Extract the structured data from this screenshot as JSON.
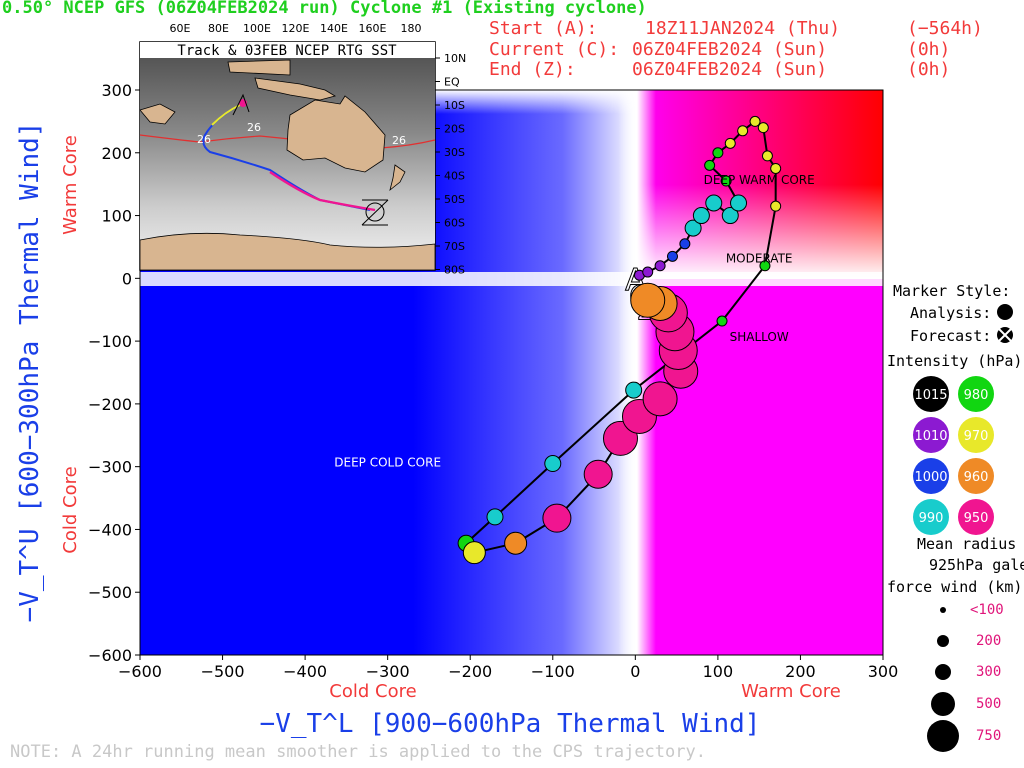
{
  "header": {
    "title": "0.50° NCEP GFS (06Z04FEB2024 run) Cyclone #1 (Existing cyclone)",
    "start_label": "Start (A):",
    "start_value": "18Z11JAN2024 (Thu)",
    "start_offset": "(−564h)",
    "current_label": "Current (C):",
    "current_value": "06Z04FEB2024 (Sun)",
    "current_offset": "(0h)",
    "end_label": "End (Z):",
    "end_value": "06Z04FEB2024 (Sun)",
    "end_offset": "(0h)"
  },
  "note": "NOTE: A 24hr running mean smoother is applied to the CPS trajectory.",
  "legend": {
    "marker_style": "Marker Style:",
    "analysis": "Analysis:",
    "forecast": "Forecast:",
    "intensity": "Intensity (hPa):",
    "intensities": [
      {
        "value": "1015",
        "color": "#000000"
      },
      {
        "value": "980",
        "color": "#11d611"
      },
      {
        "value": "1010",
        "color": "#8c1ad1"
      },
      {
        "value": "970",
        "color": "#e8e82a"
      },
      {
        "value": "1000",
        "color": "#1a3fe8"
      },
      {
        "value": "960",
        "color": "#ef8a26"
      },
      {
        "value": "990",
        "color": "#18cccc"
      },
      {
        "value": "950",
        "color": "#f01590"
      }
    ],
    "radius_title_1": "Mean radius of",
    "radius_title_2": "925hPa gale",
    "radius_title_3": "force wind (km):",
    "radii": [
      "<100",
      "200",
      "300",
      "500",
      "750"
    ]
  },
  "inset": {
    "title": "Track & 03FEB NCEP RTG SST",
    "lon_labels": [
      "60E",
      "80E",
      "100E",
      "120E",
      "140E",
      "160E",
      "180"
    ],
    "lat_labels": [
      "10N",
      "EQ",
      "10S",
      "20S",
      "30S",
      "40S",
      "50S",
      "60S",
      "70S",
      "80S"
    ],
    "sst_labels": [
      "26",
      "26",
      "26"
    ]
  },
  "chart_data": {
    "type": "scatter",
    "xlabel": "−V_T^L [900−600hPa Thermal Wind]",
    "ylabel": "−V_T^U [600−300hPa Thermal Wind]",
    "x_side_labels": {
      "left": "Cold Core",
      "right": "Warm Core"
    },
    "y_side_labels": {
      "bottom": "Cold Core",
      "top": "Warm Core"
    },
    "xlim": [
      -600,
      300
    ],
    "ylim": [
      -600,
      300
    ],
    "xticks": [
      -600,
      -500,
      -400,
      -300,
      -200,
      -100,
      0,
      100,
      200,
      300
    ],
    "yticks": [
      -600,
      -500,
      -400,
      -300,
      -200,
      -100,
      0,
      100,
      200,
      300
    ],
    "xtick_labels": [
      "−600",
      "−500",
      "−400",
      "−300",
      "−200",
      "−100",
      "0",
      "100",
      "200",
      "300"
    ],
    "ytick_labels": [
      "−600",
      "−500",
      "−400",
      "−300",
      "−200",
      "−100",
      "0",
      "100",
      "200",
      "300"
    ],
    "region_labels": [
      {
        "text": "DEEP WARM CORE",
        "x": 150,
        "y": 150
      },
      {
        "text": "MODERATE",
        "x": 150,
        "y": 25
      },
      {
        "text": "SHALLOW",
        "x": 150,
        "y": -100
      },
      {
        "text": "DEEP COLD CORE",
        "x": -300,
        "y": -300
      }
    ],
    "track_markers": [
      {
        "label": "A",
        "x": 0,
        "y": -3
      },
      {
        "label": "C",
        "x": 5,
        "y": -30
      },
      {
        "label": "Z",
        "x": 15,
        "y": -50
      }
    ],
    "series": [
      {
        "values": [
          {
            "x": 5,
            "y": 5,
            "p": 1010,
            "r": 100
          },
          {
            "x": 15,
            "y": 10,
            "p": 1010,
            "r": 100
          },
          {
            "x": 30,
            "y": 20,
            "p": 1010,
            "r": 100
          },
          {
            "x": 45,
            "y": 35,
            "p": 1000,
            "r": 100
          },
          {
            "x": 60,
            "y": 55,
            "p": 1000,
            "r": 100
          },
          {
            "x": 70,
            "y": 80,
            "p": 990,
            "r": 150
          },
          {
            "x": 80,
            "y": 100,
            "p": 990,
            "r": 150
          },
          {
            "x": 95,
            "y": 120,
            "p": 990,
            "r": 150
          },
          {
            "x": 115,
            "y": 100,
            "p": 990,
            "r": 150
          },
          {
            "x": 125,
            "y": 120,
            "p": 990,
            "r": 150
          },
          {
            "x": 110,
            "y": 155,
            "p": 980,
            "r": 100
          },
          {
            "x": 90,
            "y": 180,
            "p": 980,
            "r": 100
          },
          {
            "x": 100,
            "y": 200,
            "p": 980,
            "r": 100
          },
          {
            "x": 115,
            "y": 215,
            "p": 970,
            "r": 100
          },
          {
            "x": 130,
            "y": 235,
            "p": 970,
            "r": 100
          },
          {
            "x": 145,
            "y": 250,
            "p": 970,
            "r": 100
          },
          {
            "x": 155,
            "y": 240,
            "p": 970,
            "r": 100
          },
          {
            "x": 160,
            "y": 195,
            "p": 970,
            "r": 100
          },
          {
            "x": 170,
            "y": 175,
            "p": 970,
            "r": 100
          },
          {
            "x": 170,
            "y": 115,
            "p": 970,
            "r": 100
          },
          {
            "x": 157,
            "y": 20,
            "p": 980,
            "r": 100
          },
          {
            "x": 105,
            "y": -68,
            "p": 980,
            "r": 100
          },
          {
            "x": -2,
            "y": -178,
            "p": 990,
            "r": 150
          },
          {
            "x": -100,
            "y": -295,
            "p": 990,
            "r": 200
          },
          {
            "x": -170,
            "y": -380,
            "p": 990,
            "r": 200
          },
          {
            "x": -205,
            "y": -422,
            "p": 980,
            "r": 200
          },
          {
            "x": -195,
            "y": -437,
            "p": 970,
            "r": 300
          },
          {
            "x": -145,
            "y": -422,
            "p": 960,
            "r": 300
          },
          {
            "x": -95,
            "y": -382,
            "p": 950,
            "r": 400
          },
          {
            "x": -45,
            "y": -312,
            "p": 950,
            "r": 400
          },
          {
            "x": -18,
            "y": -255,
            "p": 950,
            "r": 450
          },
          {
            "x": 5,
            "y": -220,
            "p": 950,
            "r": 450
          },
          {
            "x": 30,
            "y": -192,
            "p": 950,
            "r": 500
          },
          {
            "x": 55,
            "y": -148,
            "p": 950,
            "r": 500
          },
          {
            "x": 52,
            "y": -115,
            "p": 950,
            "r": 550
          },
          {
            "x": 48,
            "y": -85,
            "p": 950,
            "r": 550
          },
          {
            "x": 40,
            "y": -55,
            "p": 950,
            "r": 550
          },
          {
            "x": 30,
            "y": -40,
            "p": 960,
            "r": 500
          },
          {
            "x": 15,
            "y": -35,
            "p": 960,
            "r": 450
          }
        ]
      }
    ]
  },
  "colors": {
    "cold": "#0000ff",
    "warm_low": "#ff00ff",
    "warm_high": "#ff0000",
    "axis_blue": "#1a3fe8",
    "side_red": "#f23a3a"
  }
}
